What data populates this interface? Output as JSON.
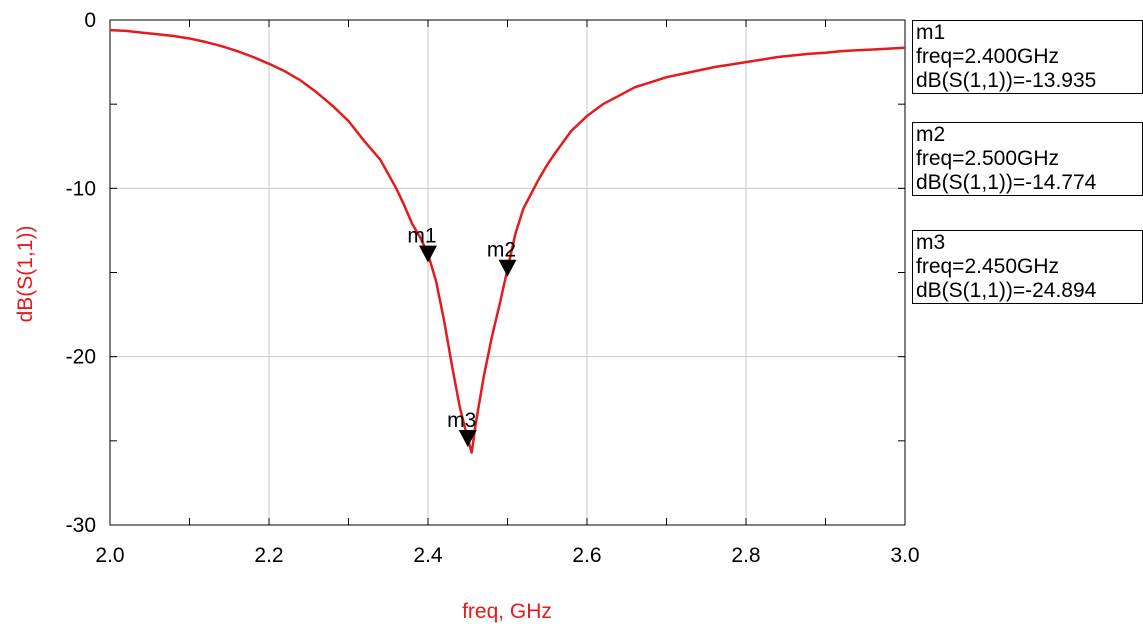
{
  "chart_data": {
    "type": "line",
    "xlabel": "freq, GHz",
    "ylabel": "dB(S(1,1))",
    "xlim": [
      2.0,
      3.0
    ],
    "ylim": [
      -30,
      0
    ],
    "x_ticks": [
      "2.0",
      "2.2",
      "2.4",
      "2.6",
      "2.8",
      "3.0"
    ],
    "y_ticks": [
      "0",
      "-10",
      "-20",
      "-30"
    ],
    "grid": true,
    "series": [
      {
        "name": "dB(S(1,1))",
        "color": "#e41a1c",
        "x": [
          2.0,
          2.02,
          2.04,
          2.06,
          2.08,
          2.1,
          2.12,
          2.14,
          2.16,
          2.18,
          2.2,
          2.22,
          2.24,
          2.26,
          2.28,
          2.3,
          2.32,
          2.34,
          2.36,
          2.37,
          2.38,
          2.39,
          2.4,
          2.41,
          2.42,
          2.43,
          2.44,
          2.45,
          2.455,
          2.46,
          2.47,
          2.48,
          2.49,
          2.5,
          2.51,
          2.52,
          2.53,
          2.54,
          2.55,
          2.56,
          2.58,
          2.6,
          2.62,
          2.64,
          2.66,
          2.68,
          2.7,
          2.72,
          2.74,
          2.76,
          2.78,
          2.8,
          2.82,
          2.84,
          2.86,
          2.88,
          2.9,
          2.92,
          2.94,
          2.96,
          2.98,
          3.0
        ],
        "y": [
          -0.6,
          -0.65,
          -0.75,
          -0.85,
          -0.95,
          -1.1,
          -1.3,
          -1.55,
          -1.85,
          -2.2,
          -2.6,
          -3.05,
          -3.6,
          -4.3,
          -5.1,
          -6.0,
          -7.2,
          -8.3,
          -10.0,
          -11.0,
          -12.1,
          -12.9,
          -13.9,
          -15.5,
          -17.8,
          -20.5,
          -23.0,
          -24.9,
          -25.7,
          -24.0,
          -21.2,
          -18.9,
          -16.9,
          -14.8,
          -12.7,
          -11.2,
          -10.3,
          -9.4,
          -8.6,
          -7.9,
          -6.6,
          -5.7,
          -5.0,
          -4.5,
          -4.0,
          -3.7,
          -3.4,
          -3.2,
          -3.0,
          -2.8,
          -2.65,
          -2.5,
          -2.35,
          -2.2,
          -2.1,
          -2.0,
          -1.95,
          -1.85,
          -1.8,
          -1.75,
          -1.7,
          -1.65
        ]
      }
    ],
    "markers": [
      {
        "name": "m1",
        "x": 2.4,
        "y": -13.935
      },
      {
        "name": "m2",
        "x": 2.5,
        "y": -14.774
      },
      {
        "name": "m3",
        "x": 2.45,
        "y": -24.894
      }
    ]
  },
  "legend": [
    {
      "name": "m1",
      "freq": "freq=2.400GHz",
      "value": "dB(S(1,1))=-13.935"
    },
    {
      "name": "m2",
      "freq": "freq=2.500GHz",
      "value": "dB(S(1,1))=-14.774"
    },
    {
      "name": "m3",
      "freq": "freq=2.450GHz",
      "value": "dB(S(1,1))=-24.894"
    }
  ]
}
